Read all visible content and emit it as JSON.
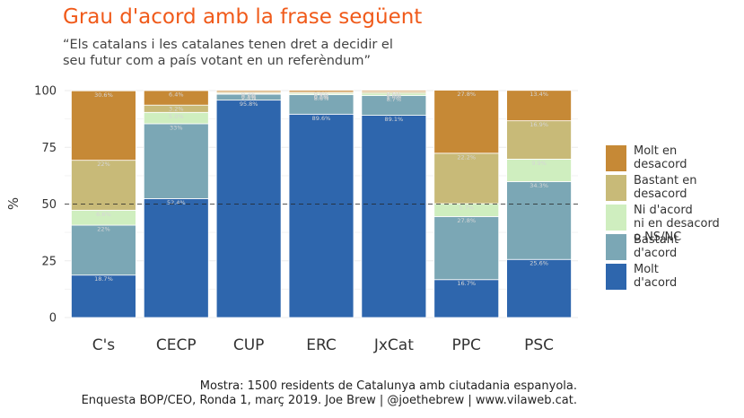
{
  "title": "Grau d'acord amb la frase següent",
  "subtitle_lines": [
    "“Els catalans i les catalanes tenen dret a decidir el",
    "seu futur com a país votant en un referèndum”"
  ],
  "caption_lines": [
    "Mostra: 1500 residents de Catalunya amb ciutadania espanyola.",
    "Enquesta BOP/CEO, Ronda 1, març 2019. Joe Brew | @joethebrew | www.vilaweb.cat."
  ],
  "chart_data": {
    "type": "bar",
    "stacked": true,
    "title": "Grau d'acord amb la frase següent",
    "xlabel": "",
    "ylabel": "%",
    "ylim": [
      0,
      100
    ],
    "yticks": [
      0,
      25,
      50,
      75,
      100
    ],
    "reference_line": {
      "y": 50,
      "style": "dashed"
    },
    "grid": true,
    "legend_position": "right",
    "categories": [
      "C's",
      "CECP",
      "CUP",
      "ERC",
      "JxCat",
      "PPC",
      "PSC"
    ],
    "series": [
      {
        "name": "Molt\nd'acord",
        "color": "#2e66ad",
        "values": [
          18.7,
          52.4,
          95.8,
          89.6,
          89.1,
          16.7,
          25.6
        ],
        "labels": [
          "18.7%",
          "52.4%",
          "95.8%",
          "89.6%",
          "89.1%",
          "16.7%",
          "25.6%"
        ]
      },
      {
        "name": "Bastant\nd'acord",
        "color": "#7ba7b5",
        "values": [
          22,
          33,
          2.6,
          8.6,
          8.7,
          27.8,
          34.3
        ],
        "labels": [
          "22%",
          "33%",
          "2.6%",
          "8.6%",
          "8.7%",
          "27.8%",
          "34.3%"
        ]
      },
      {
        "name": "Ni d'acord\nni en desacord\no NS/NC",
        "color": "#cfeebf",
        "values": [
          6.6,
          5.0,
          0.4,
          0.6,
          1.0,
          5.7,
          9.9
        ],
        "labels": [
          "6.6%",
          "5.0%",
          "0.4%",
          "0.6%",
          "1.0%",
          "5.7%",
          "9.9%"
        ]
      },
      {
        "name": "Bastant en\ndesacord",
        "color": "#c8ba78",
        "values": [
          22,
          3.2,
          0.5,
          0.5,
          0.6,
          22.2,
          16.9
        ],
        "labels": [
          "22%",
          "3.2%",
          "0.5%",
          "0.5%",
          "0.6%",
          "22.2%",
          "16.9%"
        ]
      },
      {
        "name": "Molt en\ndesacord",
        "color": "#c68936",
        "values": [
          30.6,
          6.4,
          0.7,
          0.8,
          0.6,
          27.8,
          13.4
        ],
        "labels": [
          "30.6%",
          "6.4%",
          "0.7%",
          "0.8%",
          "0.6%",
          "27.8%",
          "13.4%"
        ]
      }
    ]
  }
}
